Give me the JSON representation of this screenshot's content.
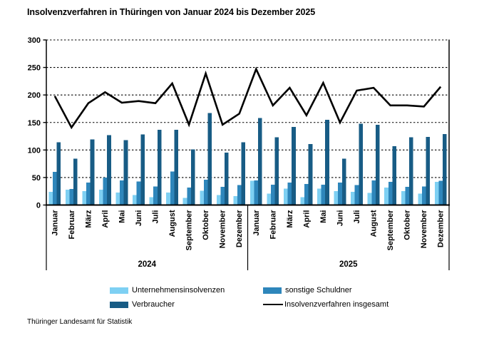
{
  "title": "Insolvenzverfahren in Thüringen von Januar 2024 bis Dezember 2025",
  "footer": {
    "source": "Thüringer Landesamt für Statistik"
  },
  "colors": {
    "unternehmen": "#7ED0F3",
    "sonstige": "#2E86BB",
    "verbraucher": "#185C85",
    "line": "#000000",
    "grid": "#000000"
  },
  "legend": {
    "items": [
      {
        "label": "Unternehmensinsolvenzen",
        "swatch": "unternehmen",
        "kind": "bar"
      },
      {
        "label": "sonstige Schuldner",
        "swatch": "sonstige",
        "kind": "bar"
      },
      {
        "label": "Verbraucher",
        "swatch": "verbraucher",
        "kind": "bar"
      },
      {
        "label": "Insolvenzverfahren insgesamt",
        "swatch": "line",
        "kind": "line"
      }
    ]
  },
  "chart_data": {
    "type": "bar",
    "title": "Insolvenzverfahren in Thüringen von Januar 2024 bis Dezember 2025",
    "xlabel": "",
    "ylabel": "",
    "ylim": [
      0,
      300
    ],
    "yticks": [
      0,
      50,
      100,
      150,
      200,
      250,
      300
    ],
    "grid": "horizontal-dashed",
    "legend_position": "bottom",
    "years": [
      "2024",
      "2025"
    ],
    "months": [
      "Januar",
      "Februar",
      "März",
      "April",
      "Mai",
      "Juni",
      "Juli",
      "August",
      "September",
      "Oktober",
      "November",
      "Dezember"
    ],
    "series": [
      {
        "name": "Unternehmensinsolvenzen",
        "color_key": "unternehmen",
        "values": {
          "2024": [
            24,
            28,
            25,
            28,
            23,
            18,
            14,
            23,
            13,
            26,
            18,
            16
          ],
          "2025": [
            44,
            21,
            30,
            14,
            30,
            25,
            24,
            22,
            32,
            25,
            21,
            42
          ]
        }
      },
      {
        "name": "sonstige Schuldner",
        "color_key": "sonstige",
        "values": {
          "2024": [
            60,
            29,
            41,
            50,
            45,
            43,
            34,
            61,
            32,
            46,
            33,
            36
          ],
          "2025": [
            45,
            37,
            41,
            38,
            37,
            41,
            36,
            45,
            42,
            33,
            34,
            44
          ]
        }
      },
      {
        "name": "Verbraucher",
        "color_key": "verbraucher",
        "values": {
          "2024": [
            114,
            84,
            119,
            127,
            118,
            128,
            137,
            137,
            101,
            167,
            95,
            114
          ],
          "2025": [
            158,
            123,
            142,
            111,
            155,
            84,
            148,
            146,
            107,
            123,
            124,
            129
          ]
        }
      }
    ],
    "line_series": {
      "name": "Insolvenzverfahren insgesamt",
      "color_key": "line",
      "values": {
        "2024": [
          198,
          141,
          185,
          205,
          186,
          189,
          185,
          221,
          146,
          239,
          146,
          166
        ],
        "2025": [
          247,
          181,
          213,
          163,
          222,
          150,
          208,
          213,
          181,
          181,
          179,
          215
        ]
      }
    }
  }
}
